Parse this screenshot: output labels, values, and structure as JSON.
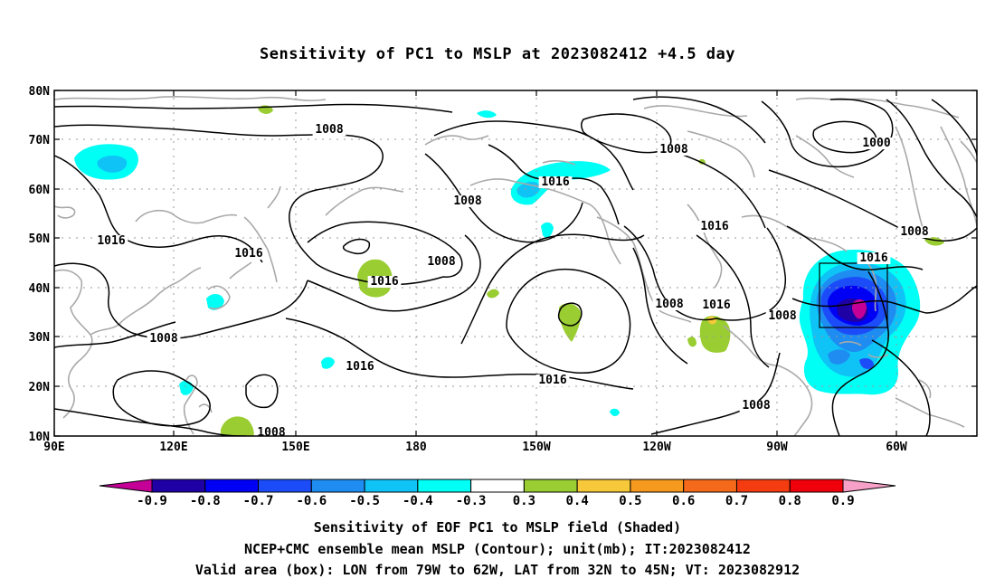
{
  "title": "Sensitivity of PC1 to MSLP at 2023082412 +4.5 day",
  "map": {
    "lon_labels": [
      "90E",
      "120E",
      "150E",
      "180",
      "150W",
      "120W",
      "90W",
      "60W"
    ],
    "lat_labels": [
      "80N",
      "70N",
      "60N",
      "50N",
      "40N",
      "30N",
      "20N",
      "10N"
    ],
    "valid_box": {
      "lon_from": "79W",
      "lon_to": "62W",
      "lat_from": "32N",
      "lat_to": "45N"
    },
    "contour_labels": [
      "1008",
      "1016",
      "1016",
      "1008",
      "1016",
      "1008",
      "1016",
      "1008",
      "1016",
      "1016",
      "1008",
      "1016",
      "1008",
      "1016",
      "1016",
      "1008",
      "1008",
      "1000",
      "1008",
      "1008"
    ],
    "colors": {
      "contour": "#000000",
      "coast": "#a9a9a9",
      "grid": "#9a9a9a"
    }
  },
  "colorbar": {
    "labels": [
      "-0.9",
      "-0.8",
      "-0.7",
      "-0.6",
      "-0.5",
      "-0.4",
      "-0.3",
      "0.3",
      "0.4",
      "0.5",
      "0.6",
      "0.7",
      "0.8",
      "0.9"
    ],
    "colors": [
      "#c40096",
      "#1e00a5",
      "#0000f5",
      "#1c4cf8",
      "#1e8cf0",
      "#0fc3f7",
      "#00fff5",
      "#ffffff",
      "#9acd32",
      "#f7c93a",
      "#f59a1f",
      "#f56a1a",
      "#f53c10",
      "#f0000a",
      "#f7a0c8"
    ]
  },
  "captions": {
    "line1": "Sensitivity of EOF PC1 to MSLP field (Shaded)",
    "line2": "NCEP+CMC ensemble mean MSLP (Contour); unit(mb); IT:2023082412",
    "line3": "Valid area (box): LON from 79W to 62W, LAT from 32N to 45N; VT: 2023082912"
  }
}
